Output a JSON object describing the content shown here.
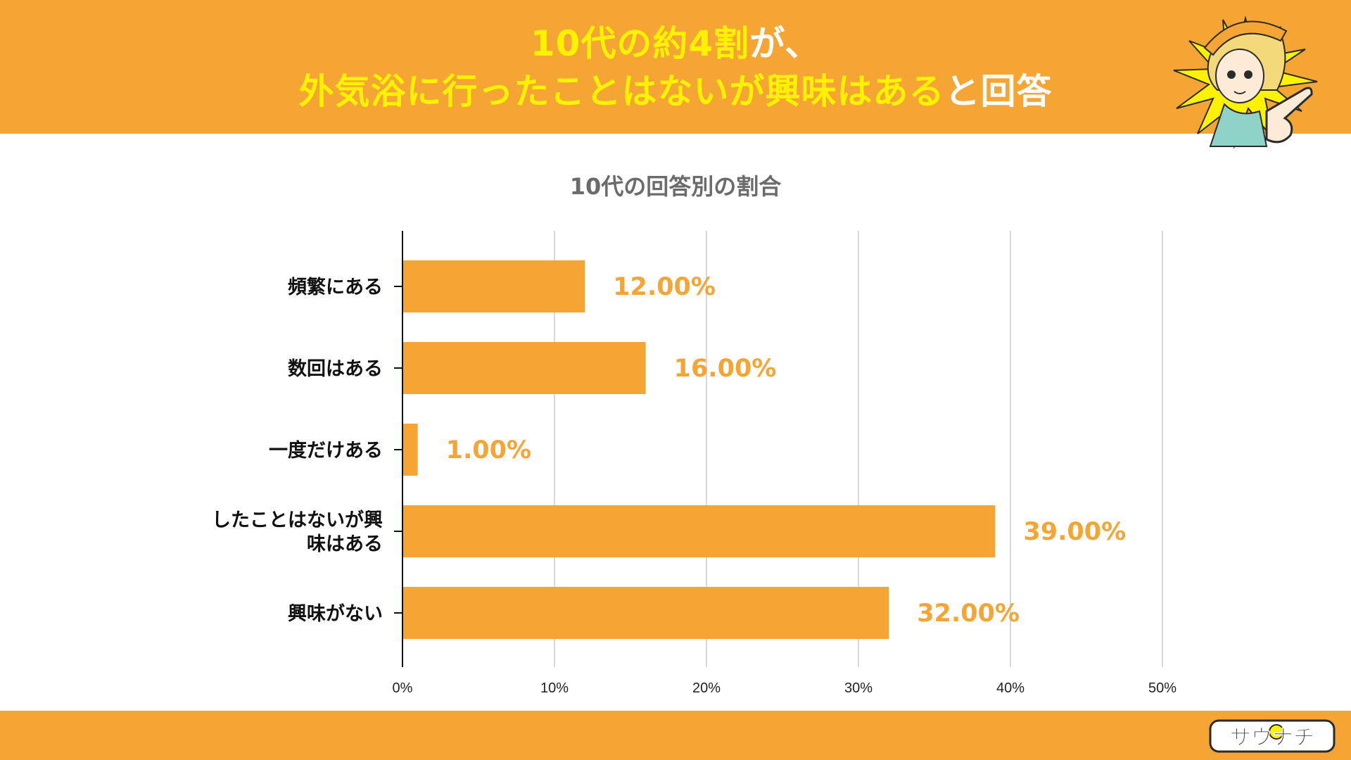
{
  "header": {
    "line1_highlight": "10代の約4割",
    "line1_rest": "が、",
    "line2_highlight": "外気浴に行ったことはないが興味はある",
    "line2_rest": "と回答"
  },
  "colors": {
    "brand_orange": "#F4A533",
    "headline_highlight": "#FFF200",
    "headline_text": "#FFFFFF",
    "bar": "#F4A533",
    "data_label": "#F4A533"
  },
  "chart_data": {
    "type": "bar",
    "orientation": "horizontal",
    "title": "10代の回答別の割合",
    "categories": [
      [
        "頻繁にある"
      ],
      [
        "数回はある"
      ],
      [
        "一度だけある"
      ],
      [
        "したことはないが興",
        "味はある"
      ],
      [
        "興味がない"
      ]
    ],
    "values": [
      12,
      16,
      1,
      39,
      32
    ],
    "data_labels": [
      "12.00%",
      "16.00%",
      "1.00%",
      "39.00%",
      "32.00%"
    ],
    "xlim": [
      0,
      50
    ],
    "xticks": [
      0,
      10,
      20,
      30,
      40,
      50
    ],
    "xtick_labels": [
      "0%",
      "10%",
      "20%",
      "30%",
      "40%",
      "50%"
    ],
    "grid": "vertical",
    "legend": "none"
  },
  "decorations": {
    "mascot_icon": "pointing-girl-mascot",
    "logo_icon": "sauna-logo",
    "logo_text": "サウナチ"
  }
}
